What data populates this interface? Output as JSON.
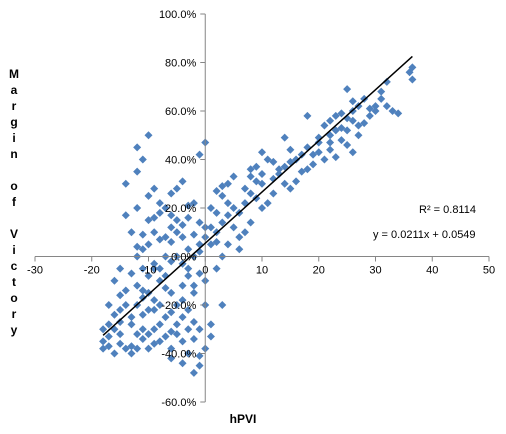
{
  "chart_data": {
    "type": "scatter",
    "title": "",
    "xlabel": "hPVI",
    "ylabel": "Margin of Victory",
    "xlim": [
      -30,
      50
    ],
    "ylim": [
      -0.6,
      1.0
    ],
    "x_ticks": [
      "-30",
      "-20",
      "-10",
      "0",
      "10",
      "20",
      "30",
      "40",
      "50"
    ],
    "y_ticks": [
      "100.0%",
      "80.0%",
      "60.0%",
      "40.0%",
      "20.0%",
      "0.0%",
      "-20.0%",
      "-40.0%",
      "-60.0%"
    ],
    "marker_color": "#4F81BD",
    "trendline_color": "#000000",
    "annotations": {
      "r2": "R² = 0.8114",
      "equation": "y = 0.0211x + 0.0549"
    },
    "trendline": {
      "slope": 0.0211,
      "intercept": 0.0549,
      "x_range": [
        -18,
        36.5
      ]
    },
    "points": [
      [
        36.5,
        0.78
      ],
      [
        36,
        0.76
      ],
      [
        36.5,
        0.73
      ],
      [
        32,
        0.72
      ],
      [
        31,
        0.68
      ],
      [
        31,
        0.65
      ],
      [
        30,
        0.62
      ],
      [
        32,
        0.62
      ],
      [
        28,
        0.65
      ],
      [
        27,
        0.62
      ],
      [
        26,
        0.6
      ],
      [
        25,
        0.69
      ],
      [
        26,
        0.64
      ],
      [
        24,
        0.59
      ],
      [
        23,
        0.58
      ],
      [
        25,
        0.57
      ],
      [
        22,
        0.56
      ],
      [
        21,
        0.54
      ],
      [
        22,
        0.5
      ],
      [
        23,
        0.52
      ],
      [
        20,
        0.49
      ],
      [
        25,
        0.46
      ],
      [
        26,
        0.43
      ],
      [
        27,
        0.5
      ],
      [
        20,
        0.47
      ],
      [
        22,
        0.44
      ],
      [
        19,
        0.42
      ],
      [
        18,
        0.45
      ],
      [
        17,
        0.42
      ],
      [
        18,
        0.58
      ],
      [
        16,
        0.4
      ],
      [
        15,
        0.44
      ],
      [
        14,
        0.49
      ],
      [
        12,
        0.39
      ],
      [
        11,
        0.4
      ],
      [
        13,
        0.36
      ],
      [
        10,
        0.43
      ],
      [
        10,
        0.34
      ],
      [
        12,
        0.32
      ],
      [
        14,
        0.3
      ],
      [
        9,
        0.37
      ],
      [
        10,
        0.3
      ],
      [
        8,
        0.33
      ],
      [
        7,
        0.28
      ],
      [
        8,
        0.26
      ],
      [
        9,
        0.24
      ],
      [
        7,
        0.22
      ],
      [
        6,
        0.18
      ],
      [
        5,
        0.2
      ],
      [
        4,
        0.22
      ],
      [
        4,
        0.17
      ],
      [
        3,
        0.25
      ],
      [
        3,
        0.14
      ],
      [
        2,
        0.18
      ],
      [
        1,
        0.12
      ],
      [
        2,
        0.1
      ],
      [
        1,
        0.05
      ],
      [
        0,
        0.08
      ],
      [
        -1,
        0.05
      ],
      [
        -1,
        0.02
      ],
      [
        -2,
        0.0
      ],
      [
        -3,
        0.03
      ],
      [
        0,
        0.47
      ],
      [
        -1,
        0.42
      ],
      [
        -5,
        0.28
      ],
      [
        -4,
        0.31
      ],
      [
        -6,
        0.26
      ],
      [
        -2,
        0.22
      ],
      [
        -3,
        0.21
      ],
      [
        -7,
        0.2
      ],
      [
        -8,
        0.18
      ],
      [
        -9,
        0.16
      ],
      [
        -6,
        0.12
      ],
      [
        -5,
        0.1
      ],
      [
        -4,
        0.08
      ],
      [
        -8,
        0.07
      ],
      [
        -10,
        0.05
      ],
      [
        -11,
        0.03
      ],
      [
        -12,
        0.04
      ],
      [
        -7,
        0.0
      ],
      [
        -6,
        -0.02
      ],
      [
        -9,
        -0.03
      ],
      [
        -11,
        -0.05
      ],
      [
        -13,
        -0.07
      ],
      [
        -10,
        -0.08
      ],
      [
        -8,
        -0.1
      ],
      [
        -7,
        -0.13
      ],
      [
        -12,
        -0.12
      ],
      [
        -14,
        -0.14
      ],
      [
        -15,
        -0.16
      ],
      [
        -9,
        -0.18
      ],
      [
        -12,
        -0.2
      ],
      [
        -11,
        -0.24
      ],
      [
        -10,
        -0.22
      ],
      [
        -13,
        -0.25
      ],
      [
        -15,
        -0.27
      ],
      [
        -16,
        -0.3
      ],
      [
        -17,
        -0.33
      ],
      [
        -18,
        -0.35
      ],
      [
        -15,
        -0.36
      ],
      [
        -14,
        -0.38
      ],
      [
        -16,
        -0.4
      ],
      [
        -13,
        -0.37
      ],
      [
        -11,
        -0.34
      ],
      [
        -9,
        -0.3
      ],
      [
        -8,
        -0.28
      ],
      [
        -7,
        -0.25
      ],
      [
        -6,
        -0.23
      ],
      [
        -5,
        -0.2
      ],
      [
        -4,
        -0.18
      ],
      [
        -3,
        -0.22
      ],
      [
        -2,
        -0.27
      ],
      [
        -1,
        -0.3
      ],
      [
        -4,
        -0.35
      ],
      [
        -6,
        -0.38
      ],
      [
        -3,
        -0.4
      ],
      [
        -2,
        -0.48
      ],
      [
        -1,
        -0.41
      ],
      [
        0,
        -0.2
      ],
      [
        1,
        -0.33
      ],
      [
        -12,
        0.35
      ],
      [
        -10,
        0.25
      ],
      [
        -9,
        0.28
      ],
      [
        -14,
        0.17
      ],
      [
        -13,
        0.1
      ],
      [
        -11,
        0.09
      ],
      [
        -15,
        -0.05
      ],
      [
        -16,
        -0.1
      ],
      [
        -17,
        -0.2
      ],
      [
        -12,
        0.0
      ],
      [
        -10,
        -0.15
      ],
      [
        -8,
        -0.05
      ],
      [
        -5,
        0.0
      ],
      [
        -3,
        -0.08
      ],
      [
        -2,
        -0.12
      ],
      [
        0,
        -0.1
      ],
      [
        2,
        -0.05
      ],
      [
        3,
        0.0
      ],
      [
        4,
        0.05
      ],
      [
        6,
        0.08
      ],
      [
        5,
        0.12
      ],
      [
        7,
        0.1
      ],
      [
        8,
        0.14
      ],
      [
        6,
        0.03
      ],
      [
        10,
        0.2
      ],
      [
        11,
        0.22
      ],
      [
        12,
        0.26
      ],
      [
        15,
        0.28
      ],
      [
        16,
        0.31
      ],
      [
        17,
        0.35
      ],
      [
        18,
        0.36
      ],
      [
        19,
        0.38
      ],
      [
        21,
        0.4
      ],
      [
        23,
        0.41
      ],
      [
        24,
        0.48
      ],
      [
        29,
        0.58
      ],
      [
        30,
        0.6
      ],
      [
        33,
        0.6
      ],
      [
        34,
        0.59
      ],
      [
        28,
        0.55
      ],
      [
        27,
        0.54
      ],
      [
        25,
        0.52
      ],
      [
        24,
        0.53
      ],
      [
        -14,
        0.3
      ],
      [
        -12,
        0.2
      ],
      [
        -9,
        0.1
      ],
      [
        -7,
        0.08
      ],
      [
        -6,
        0.06
      ],
      [
        -4,
        -0.03
      ],
      [
        -3,
        -0.05
      ],
      [
        -1,
        -0.07
      ],
      [
        -15,
        -0.22
      ],
      [
        -13,
        -0.28
      ],
      [
        -11,
        -0.3
      ],
      [
        -10,
        -0.32
      ],
      [
        -9,
        -0.36
      ],
      [
        -7,
        -0.33
      ],
      [
        -6,
        -0.31
      ],
      [
        -5,
        -0.28
      ],
      [
        -8,
        -0.2
      ],
      [
        -11,
        -0.17
      ],
      [
        -12,
        -0.32
      ],
      [
        -16,
        -0.24
      ],
      [
        -17,
        -0.28
      ],
      [
        -14,
        -0.2
      ],
      [
        -4,
        0.13
      ],
      [
        -3,
        0.16
      ],
      [
        -1,
        0.14
      ],
      [
        1,
        0.2
      ],
      [
        2,
        0.27
      ],
      [
        4,
        0.3
      ],
      [
        5,
        0.33
      ],
      [
        3,
        0.29
      ],
      [
        -13,
        -0.4
      ],
      [
        -10,
        -0.38
      ],
      [
        -8,
        -0.35
      ],
      [
        -5,
        -0.32
      ],
      [
        -4,
        -0.25
      ],
      [
        -2,
        -0.34
      ],
      [
        0,
        -0.38
      ],
      [
        1,
        -0.28
      ],
      [
        -17,
        -0.37
      ],
      [
        -18,
        -0.3
      ],
      [
        -10,
        0.15
      ],
      [
        -8,
        0.22
      ],
      [
        -6,
        0.17
      ],
      [
        -5,
        0.15
      ],
      [
        -2,
        0.09
      ],
      [
        0,
        0.12
      ],
      [
        2,
        0.06
      ],
      [
        14,
        0.37
      ],
      [
        13,
        0.34
      ],
      [
        9,
        0.31
      ],
      [
        8,
        0.36
      ],
      [
        15,
        0.39
      ],
      [
        20,
        0.43
      ],
      [
        22,
        0.47
      ],
      [
        26,
        0.56
      ],
      [
        29,
        0.61
      ],
      [
        -10,
        0.5
      ],
      [
        -12,
        0.45
      ],
      [
        -11,
        0.4
      ],
      [
        -9,
        -0.05
      ],
      [
        -7,
        -0.08
      ],
      [
        -6,
        -0.15
      ],
      [
        -4,
        -0.12
      ],
      [
        -2,
        -0.15
      ],
      [
        3,
        -0.2
      ],
      [
        -18,
        -0.38
      ],
      [
        -15,
        -0.32
      ],
      [
        -11,
        -0.14
      ],
      [
        -9,
        -0.22
      ],
      [
        -12,
        -0.38
      ],
      [
        -6,
        -0.42
      ],
      [
        -4,
        -0.44
      ],
      [
        -1,
        -0.45
      ],
      [
        -3,
        -0.3
      ]
    ]
  }
}
